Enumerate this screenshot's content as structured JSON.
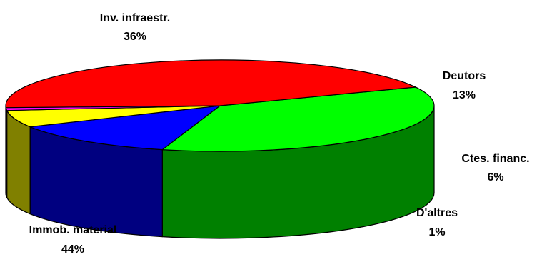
{
  "chart_data": {
    "type": "pie",
    "style": "3d",
    "slices": [
      {
        "label": "Inv. infraestr.",
        "value": 36,
        "display": "36%",
        "color": "#00ff00",
        "side_color": "#008000"
      },
      {
        "label": "Deutors",
        "value": 13,
        "display": "13%",
        "color": "#0000ff",
        "side_color": "#000080"
      },
      {
        "label": "Ctes. financ.",
        "value": 6,
        "display": "6%",
        "color": "#ffff00",
        "side_color": "#808000"
      },
      {
        "label": "D'altres",
        "value": 1,
        "display": "1%",
        "color": "#ff00ff",
        "side_color": "#800080"
      },
      {
        "label": "Immob. material",
        "value": 44,
        "display": "44%",
        "color": "#ff0000",
        "side_color": "#800000"
      }
    ]
  }
}
